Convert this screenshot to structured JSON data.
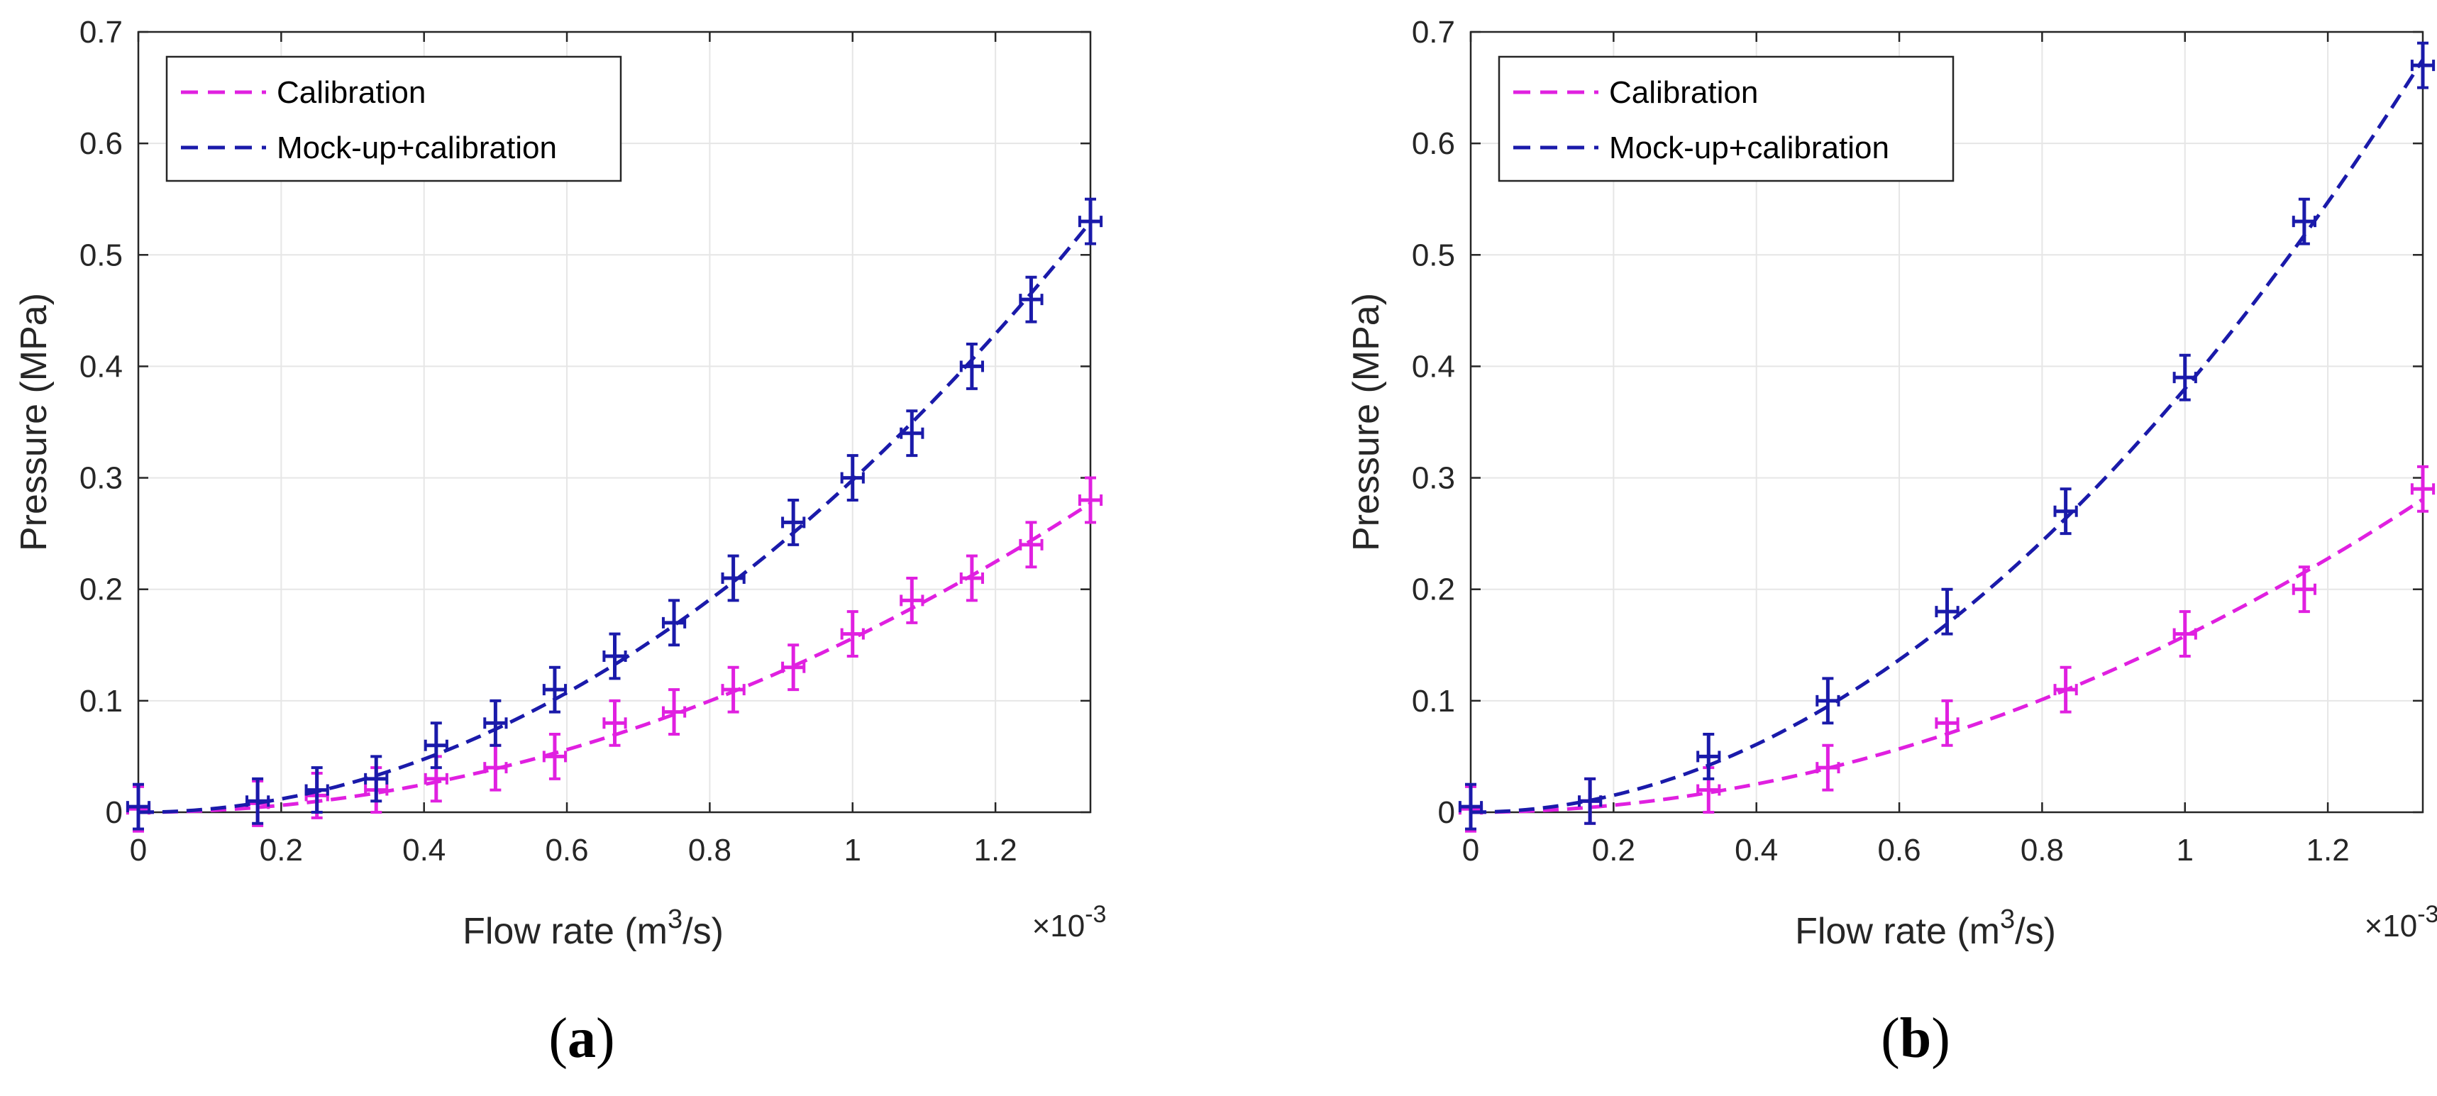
{
  "chart_data": [
    {
      "type": "line",
      "panel_label": "a",
      "xlabel": "Flow rate (m",
      "xlabel_sup": "3",
      "xlabel_tail": "/s)",
      "ylabel": "Pressure (MPa)",
      "x_exponent_prefix": "×10",
      "x_exponent_sup": "-3",
      "xlim": [
        0,
        1.333
      ],
      "ylim": [
        0,
        0.7
      ],
      "x_ticks": [
        0,
        0.2,
        0.4,
        0.6,
        0.8,
        1,
        1.2
      ],
      "x_tick_labels": [
        "0",
        "0.2",
        "0.4",
        "0.6",
        "0.8",
        "1",
        "1.2"
      ],
      "y_ticks": [
        0,
        0.1,
        0.2,
        0.3,
        0.4,
        0.5,
        0.6,
        0.7
      ],
      "y_tick_labels": [
        "0",
        "0.1",
        "0.2",
        "0.3",
        "0.4",
        "0.5",
        "0.6",
        "0.7"
      ],
      "grid": true,
      "legend_position": "top-left",
      "series": [
        {
          "name": "Calibration",
          "color": "#e020e0",
          "x": [
            0,
            0.167,
            0.25,
            0.333,
            0.417,
            0.5,
            0.583,
            0.667,
            0.75,
            0.833,
            0.917,
            1.0,
            1.083,
            1.167,
            1.25,
            1.333
          ],
          "y": [
            0.003,
            0.008,
            0.015,
            0.02,
            0.03,
            0.04,
            0.05,
            0.08,
            0.09,
            0.11,
            0.13,
            0.16,
            0.19,
            0.21,
            0.24,
            0.28
          ],
          "y_err": 0.02,
          "x_err": 0.015,
          "fit_coeff": 0.156
        },
        {
          "name": "Mock-up+calibration",
          "color": "#1a1aaa",
          "x": [
            0,
            0.167,
            0.25,
            0.333,
            0.417,
            0.5,
            0.583,
            0.667,
            0.75,
            0.833,
            0.917,
            1.0,
            1.083,
            1.167,
            1.25,
            1.333
          ],
          "y": [
            0.005,
            0.01,
            0.02,
            0.03,
            0.06,
            0.08,
            0.11,
            0.14,
            0.17,
            0.21,
            0.26,
            0.3,
            0.34,
            0.4,
            0.46,
            0.53
          ],
          "y_err": 0.02,
          "x_err": 0.015,
          "fit_coeff": 0.298
        }
      ]
    },
    {
      "type": "line",
      "panel_label": "b",
      "xlabel": "Flow rate (m",
      "xlabel_sup": "3",
      "xlabel_tail": "/s)",
      "ylabel": "Pressure (MPa)",
      "x_exponent_prefix": "×10",
      "x_exponent_sup": "-3",
      "xlim": [
        0,
        1.333
      ],
      "ylim": [
        0,
        0.7
      ],
      "x_ticks": [
        0,
        0.2,
        0.4,
        0.6,
        0.8,
        1,
        1.2
      ],
      "x_tick_labels": [
        "0",
        "0.2",
        "0.4",
        "0.6",
        "0.8",
        "1",
        "1.2"
      ],
      "y_ticks": [
        0,
        0.1,
        0.2,
        0.3,
        0.4,
        0.5,
        0.6,
        0.7
      ],
      "y_tick_labels": [
        "0",
        "0.1",
        "0.2",
        "0.3",
        "0.4",
        "0.5",
        "0.6",
        "0.7"
      ],
      "grid": true,
      "legend_position": "top-left",
      "series": [
        {
          "name": "Calibration",
          "color": "#e020e0",
          "x": [
            0,
            0.167,
            0.333,
            0.5,
            0.667,
            0.833,
            1.0,
            1.167,
            1.333
          ],
          "y": [
            0.003,
            0.01,
            0.02,
            0.04,
            0.08,
            0.11,
            0.16,
            0.2,
            0.29
          ],
          "y_err": 0.02,
          "x_err": 0.015,
          "fit_coeff": 0.158
        },
        {
          "name": "Mock-up+calibration",
          "color": "#1a1aaa",
          "x": [
            0,
            0.167,
            0.333,
            0.5,
            0.667,
            0.833,
            1.0,
            1.167,
            1.333
          ],
          "y": [
            0.005,
            0.01,
            0.05,
            0.1,
            0.18,
            0.27,
            0.39,
            0.53,
            0.67
          ],
          "y_err": 0.02,
          "x_err": 0.015,
          "fit_coeff": 0.38
        }
      ]
    }
  ]
}
